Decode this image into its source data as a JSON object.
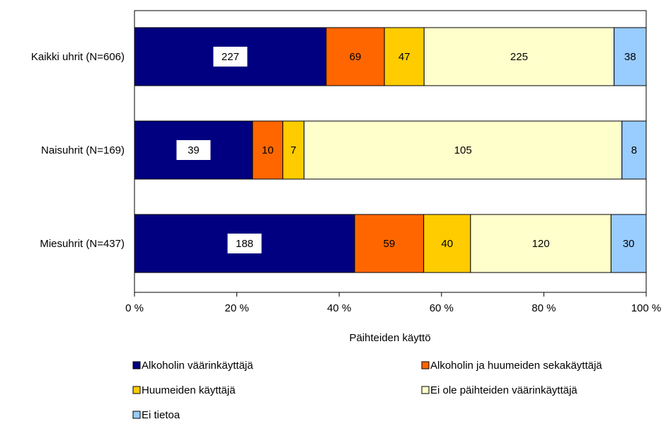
{
  "chart_data": {
    "type": "bar",
    "stacked": "percent",
    "orientation": "horizontal",
    "xlabel": "Päihteiden käyttö",
    "xlim": [
      0,
      100
    ],
    "x_ticks": [
      "0 %",
      "20 %",
      "40 %",
      "60 %",
      "80 %",
      "100 %"
    ],
    "grid": false,
    "legend_position": "bottom",
    "categories": [
      "Kaikki uhrit (N=606)",
      "Naisuhrit (N=169)",
      "Miesuhrit (N=437)"
    ],
    "series": [
      {
        "name": "Alkoholin väärinkäyttäjä",
        "color": "#000080",
        "values": [
          227,
          39,
          188
        ]
      },
      {
        "name": "Alkoholin ja huumeiden sekakäyttäjä",
        "color": "#FF6600",
        "values": [
          69,
          10,
          59
        ]
      },
      {
        "name": "Huumeiden käyttäjä",
        "color": "#FFCC00",
        "values": [
          47,
          7,
          40
        ]
      },
      {
        "name": "Ei ole päihteiden väärinkäyttäjä",
        "color": "#FFFFCC",
        "values": [
          225,
          105,
          120
        ]
      },
      {
        "name": "Ei tietoa",
        "color": "#99CCFF",
        "values": [
          38,
          8,
          30
        ]
      }
    ]
  }
}
